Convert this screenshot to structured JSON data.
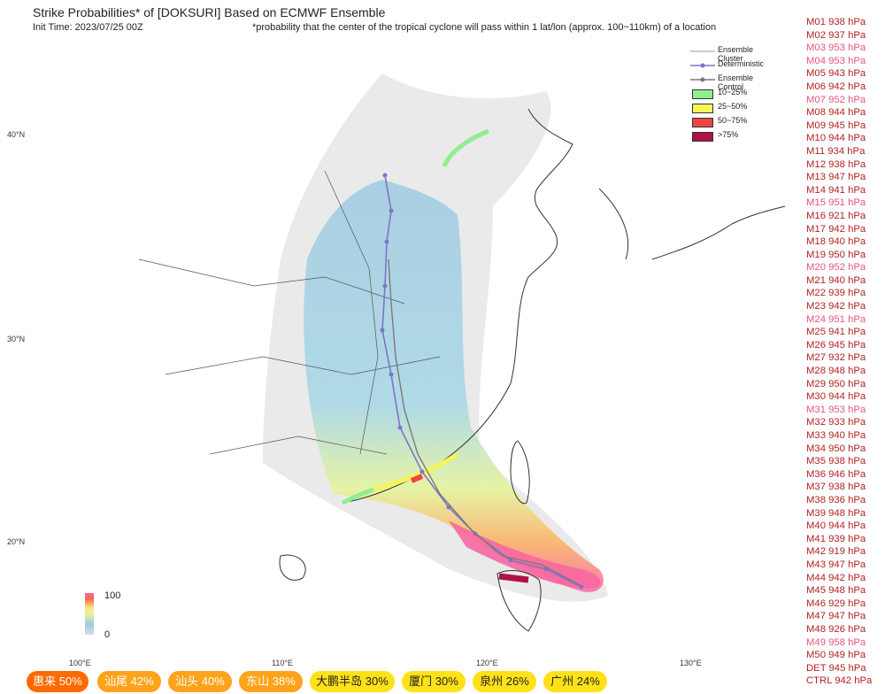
{
  "header": {
    "title": "Strike Probabilities* of [DOKSURI] Based on ECMWF Ensemble",
    "init_time": "Init Time: 2023/07/25 00Z",
    "footnote": "*probability that the center of the tropical cyclone will pass within 1 lat/lon (approx. 100~110km) of a location"
  },
  "axes": {
    "lat_labels": [
      "40°N",
      "30°N",
      "20°N"
    ],
    "lon_labels": [
      "100°E",
      "110°E",
      "120°E",
      "130°E"
    ]
  },
  "legend": {
    "ensemble_cluster": "Ensemble Cluster",
    "deterministic": "Deterministic",
    "ensemble_control": "Ensemble Control",
    "bins": [
      {
        "label": "10~25%",
        "color": "#90ee90"
      },
      {
        "label": "25~50%",
        "color": "#f5f55a"
      },
      {
        "label": "50~75%",
        "color": "#ee4444"
      },
      {
        "label": ">75%",
        "color": "#b0104a"
      }
    ]
  },
  "colorbar": {
    "max": "100",
    "min": "0"
  },
  "members": [
    {
      "label": "M01 938 hPa",
      "color": "#b22222"
    },
    {
      "label": "M02 937 hPa",
      "color": "#b22222"
    },
    {
      "label": "M03 953 hPa",
      "color": "#e75480"
    },
    {
      "label": "M04 953 hPa",
      "color": "#e75480"
    },
    {
      "label": "M05 943 hPa",
      "color": "#b22222"
    },
    {
      "label": "M06 942 hPa",
      "color": "#b22222"
    },
    {
      "label": "M07 952 hPa",
      "color": "#e75480"
    },
    {
      "label": "M08 944 hPa",
      "color": "#b22222"
    },
    {
      "label": "M09 945 hPa",
      "color": "#b22222"
    },
    {
      "label": "M10 944 hPa",
      "color": "#b22222"
    },
    {
      "label": "M11 934 hPa",
      "color": "#b22222"
    },
    {
      "label": "M12 938 hPa",
      "color": "#b22222"
    },
    {
      "label": "M13 947 hPa",
      "color": "#b22222"
    },
    {
      "label": "M14 941 hPa",
      "color": "#b22222"
    },
    {
      "label": "M15 951 hPa",
      "color": "#e75480"
    },
    {
      "label": "M16 921 hPa",
      "color": "#b22222"
    },
    {
      "label": "M17 942 hPa",
      "color": "#b22222"
    },
    {
      "label": "M18 940 hPa",
      "color": "#b22222"
    },
    {
      "label": "M19 950 hPa",
      "color": "#b22222"
    },
    {
      "label": "M20 952 hPa",
      "color": "#e75480"
    },
    {
      "label": "M21 940 hPa",
      "color": "#b22222"
    },
    {
      "label": "M22 939 hPa",
      "color": "#b22222"
    },
    {
      "label": "M23 942 hPa",
      "color": "#b22222"
    },
    {
      "label": "M24 951 hPa",
      "color": "#e75480"
    },
    {
      "label": "M25 941 hPa",
      "color": "#b22222"
    },
    {
      "label": "M26 945 hPa",
      "color": "#b22222"
    },
    {
      "label": "M27 932 hPa",
      "color": "#b22222"
    },
    {
      "label": "M28 948 hPa",
      "color": "#b22222"
    },
    {
      "label": "M29 950 hPa",
      "color": "#b22222"
    },
    {
      "label": "M30 944 hPa",
      "color": "#b22222"
    },
    {
      "label": "M31 953 hPa",
      "color": "#e75480"
    },
    {
      "label": "M32 933 hPa",
      "color": "#b22222"
    },
    {
      "label": "M33 940 hPa",
      "color": "#b22222"
    },
    {
      "label": "M34 950 hPa",
      "color": "#b22222"
    },
    {
      "label": "M35 938 hPa",
      "color": "#b22222"
    },
    {
      "label": "M36 946 hPa",
      "color": "#b22222"
    },
    {
      "label": "M37 938 hPa",
      "color": "#b22222"
    },
    {
      "label": "M38 936 hPa",
      "color": "#b22222"
    },
    {
      "label": "M39 948 hPa",
      "color": "#b22222"
    },
    {
      "label": "M40 944 hPa",
      "color": "#b22222"
    },
    {
      "label": "M41 939 hPa",
      "color": "#b22222"
    },
    {
      "label": "M42 919 hPa",
      "color": "#b22222"
    },
    {
      "label": "M43 947 hPa",
      "color": "#b22222"
    },
    {
      "label": "M44 942 hPa",
      "color": "#b22222"
    },
    {
      "label": "M45 948 hPa",
      "color": "#b22222"
    },
    {
      "label": "M46 929 hPa",
      "color": "#b22222"
    },
    {
      "label": "M47 947 hPa",
      "color": "#b22222"
    },
    {
      "label": "M48 926 hPa",
      "color": "#b22222"
    },
    {
      "label": "M49 958 hPa",
      "color": "#e75480"
    },
    {
      "label": "M50 949 hPa",
      "color": "#b22222"
    },
    {
      "label": "DET 945 hPa",
      "color": "#b22222"
    },
    {
      "label": "CTRL 942 hPa",
      "color": "#b22222"
    }
  ],
  "locations": [
    {
      "label": "惠来 50%",
      "color": "#ff6a00",
      "text_color": "#ffffff"
    },
    {
      "label": "汕尾 42%",
      "color": "#ffa31a",
      "text_color": "#ffffff"
    },
    {
      "label": "汕头 40%",
      "color": "#ffa31a",
      "text_color": "#ffffff"
    },
    {
      "label": "东山 38%",
      "color": "#ffa31a",
      "text_color": "#ffffff"
    },
    {
      "label": "大鹏半岛 30%",
      "color": "#ffe11a",
      "text_color": "#222222"
    },
    {
      "label": "厦门 30%",
      "color": "#ffe11a",
      "text_color": "#222222"
    },
    {
      "label": "泉州 26%",
      "color": "#ffe11a",
      "text_color": "#222222"
    },
    {
      "label": "广州 24%",
      "color": "#ffe11a",
      "text_color": "#222222"
    }
  ]
}
